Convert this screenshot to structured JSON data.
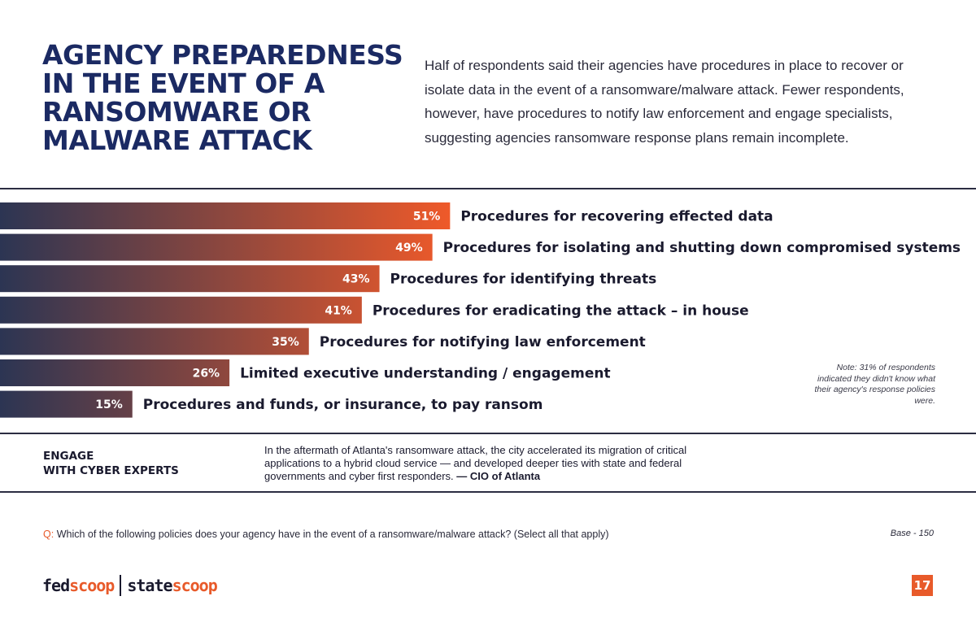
{
  "header": {
    "title_lines": [
      "AGENCY PREPAREDNESS",
      "IN THE EVENT OF A",
      "RANSOMWARE OR",
      "MALWARE ATTACK"
    ],
    "intro": "Half of respondents said their agencies have procedures in place to recover or isolate data in the event of a ransomware/malware attack. Fewer respondents, however, have procedures to notify law enforcement and engage specialists, suggesting agencies ransomware response plans remain incomplete."
  },
  "chart_data": {
    "type": "bar",
    "orientation": "horizontal",
    "categories": [
      "Procedures for recovering effected data",
      "Procedures for isolating and shutting down compromised systems",
      "Procedures for identifying threats",
      "Procedures for eradicating the attack – in house",
      "Procedures for notifying law enforcement",
      "Limited executive understanding / engagement",
      "Procedures and funds, or insurance, to pay ransom"
    ],
    "values": [
      51,
      49,
      43,
      41,
      35,
      26,
      15
    ],
    "value_labels": [
      "51%",
      "49%",
      "43%",
      "41%",
      "35%",
      "26%",
      "15%"
    ],
    "unit": "%",
    "xlim": [
      0,
      100
    ],
    "colors": {
      "gradient_start": "#2c3553",
      "gradient_end": "#f15a29"
    }
  },
  "note": "Note: 31% of respondents indicated they didn't know what their agency's response policies were.",
  "engage": {
    "heading_line1": "ENGAGE",
    "heading_line2": "WITH CYBER EXPERTS",
    "quote": "In the aftermath of Atlanta's ransomware attack, the city accelerated its migration of critical applications to a hybrid cloud service — and developed deeper ties with state and federal governments and cyber first responders.",
    "attribution": "— CIO of Atlanta"
  },
  "footer": {
    "question_prefix": "Q:",
    "question": "Which of the following policies does your agency have in the event of a ransomware/malware attack? (Select all that apply)",
    "base": "Base - 150",
    "logo": {
      "fed": "fed",
      "scoop1": "scoop",
      "state": "state",
      "scoop2": "scoop"
    },
    "page_number": "17"
  },
  "colors": {
    "navy": "#1b2a63",
    "accent": "#e85a2a"
  }
}
